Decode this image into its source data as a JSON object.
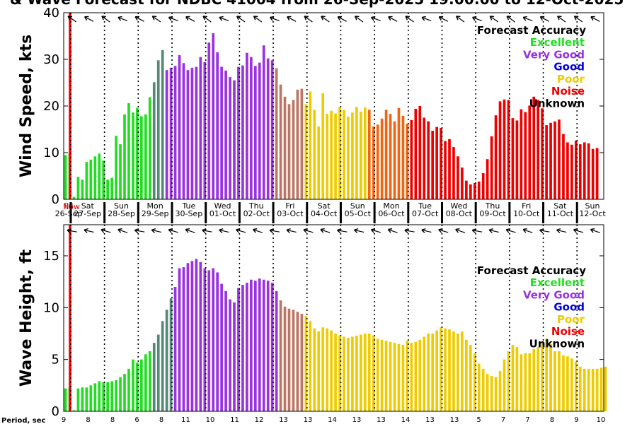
{
  "title": "& Wave Forecast for NDBC 41004 from 26-Sep-2025 19:00:00 to 12-Oct-2025",
  "colors": {
    "Excellent": "#22dd22",
    "VeryGood": "#9933dd",
    "Good": "#0000dd",
    "Poor": "#eecc00",
    "Noise": "#ee0000",
    "Unknown": "#000000",
    "Transition1": "#558877",
    "Transition2": "#bb7766",
    "Orange": "#ee6611",
    "Now": "#ff0000"
  },
  "legend": {
    "heading": "Forecast Accuracy",
    "items": [
      {
        "label": "Excellent",
        "color": "#22dd22"
      },
      {
        "label": "Very Good",
        "color": "#9933dd"
      },
      {
        "label": "Good",
        "color": "#0000dd"
      },
      {
        "label": "Poor",
        "color": "#eecc00"
      },
      {
        "label": "Noise",
        "color": "#ee0000"
      },
      {
        "label": "Unknown",
        "color": "#000000"
      }
    ]
  },
  "now_label": "Now",
  "days": [
    {
      "dow": "Fri",
      "date": "26-Sep"
    },
    {
      "dow": "Sat",
      "date": "27-Sep"
    },
    {
      "dow": "Sun",
      "date": "28-Sep"
    },
    {
      "dow": "Mon",
      "date": "29-Sep"
    },
    {
      "dow": "Tue",
      "date": "30-Sep"
    },
    {
      "dow": "Wed",
      "date": "01-Oct"
    },
    {
      "dow": "Thu",
      "date": "02-Oct"
    },
    {
      "dow": "Fri",
      "date": "03-Oct"
    },
    {
      "dow": "Sat",
      "date": "04-Oct"
    },
    {
      "dow": "Sun",
      "date": "05-Oct"
    },
    {
      "dow": "Mon",
      "date": "06-Oct"
    },
    {
      "dow": "Tue",
      "date": "07-Oct"
    },
    {
      "dow": "Wed",
      "date": "08-Oct"
    },
    {
      "dow": "Thu",
      "date": "09-Oct"
    },
    {
      "dow": "Fri",
      "date": "10-Oct"
    },
    {
      "dow": "Sat",
      "date": "11-Oct"
    },
    {
      "dow": "Sun",
      "date": "12-Oct"
    }
  ],
  "period_label": "Period, sec",
  "periods": [
    "9",
    "8",
    "8",
    "6",
    "8",
    "11",
    "10",
    "11",
    "12",
    "13",
    "13",
    "14",
    "13",
    "13",
    "14",
    "13",
    "13",
    "5",
    "7",
    "7",
    "8",
    "9",
    "10"
  ],
  "chart_data": [
    {
      "type": "bar",
      "ylabel": "Wind Speed, kts",
      "ylim": [
        0,
        40
      ],
      "yticks": [
        "0",
        "10",
        "20",
        "30",
        "40"
      ],
      "series": [
        {
          "values": [
            9.5,
            9.8,
            0.5,
            4.8,
            4.2,
            8,
            8.5,
            9.2,
            9.8,
            8.3,
            4.2,
            4.6,
            13.6,
            11.8,
            18.2,
            20.6,
            18.6,
            19.6,
            17.8,
            18.2,
            21.9,
            25.1,
            29.8,
            32,
            27.7,
            28.2,
            28.6,
            30.9,
            29.2,
            27.7,
            28.2,
            28.4,
            30.5,
            29.4,
            33.6,
            35.6,
            31.5,
            28.4,
            27.6,
            26.2,
            25.5,
            28.4,
            28.7,
            31.4,
            30.5,
            28.6,
            29.3,
            33,
            30.2,
            29.8,
            28.1,
            24.6,
            22,
            20.4,
            21.3,
            23.5,
            23.7,
            20.4,
            23.1,
            19.2,
            15.6,
            22.7,
            18.3,
            19,
            18.4,
            19.8,
            19.2,
            17.7,
            18.6,
            19.8,
            18.8,
            19.7,
            19.2,
            15.6,
            16,
            17.3,
            19.2,
            18.3,
            16.7,
            19.6,
            17.9,
            16.2,
            17,
            19.4,
            20,
            17.5,
            16.7,
            14.7,
            15.5,
            15.3,
            12.5,
            12.9,
            11.2,
            9.2,
            6.8,
            4,
            3.2,
            3.5,
            3.8,
            5.6,
            8.6,
            13.5,
            18,
            21,
            21.4,
            21.3,
            17.4,
            16.9,
            19.3,
            18.7,
            20.1,
            22,
            21.3,
            19.5,
            15.9,
            16.4,
            16.7,
            17.1,
            14,
            12.2,
            11.7,
            12.6,
            11.8,
            12.2,
            12,
            10.8,
            11
          ]
        }
      ]
    },
    {
      "type": "bar",
      "ylabel": "Wave Height, ft",
      "ylim": [
        0,
        18
      ],
      "yticks": [
        "0",
        "5",
        "10",
        "15"
      ],
      "series": [
        {
          "values": [
            2.2,
            2.3,
            0.1,
            2.2,
            2.3,
            2.3,
            2.5,
            2.7,
            2.9,
            2.8,
            2.8,
            2.9,
            3,
            3.3,
            3.6,
            4.1,
            5,
            4.7,
            5,
            5.5,
            5.8,
            6.6,
            7.4,
            8.7,
            9.8,
            10.9,
            12,
            13.8,
            13.9,
            14.3,
            14.5,
            14.7,
            14.4,
            13.8,
            13.6,
            13.8,
            13.4,
            12.3,
            11.6,
            10.8,
            10.5,
            11.9,
            12.2,
            12.4,
            12.7,
            12.6,
            12.8,
            12.7,
            12.6,
            12.4,
            11.6,
            10.7,
            10.1,
            9.9,
            9.8,
            9.6,
            9.4,
            9.2,
            8.7,
            8,
            7.7,
            8.1,
            8,
            7.8,
            7.5,
            7.3,
            7.2,
            7.1,
            7.2,
            7.3,
            7.4,
            7.5,
            7.5,
            7.3,
            7,
            6.9,
            6.8,
            6.7,
            6.6,
            6.5,
            6.4,
            6.8,
            6.6,
            6.7,
            6.9,
            7.2,
            7.5,
            7.5,
            7.8,
            8.1,
            8,
            7.9,
            7.7,
            7.5,
            7.7,
            6.9,
            6.4,
            5.6,
            4.6,
            4.1,
            3.6,
            3.4,
            3.3,
            3.9,
            5,
            5.8,
            6.4,
            6.2,
            5.5,
            5.6,
            5.6,
            6,
            6.2,
            6.6,
            7,
            6.5,
            5.8,
            5.8,
            5.4,
            5.3,
            5.1,
            4.8,
            4.3,
            4.1,
            4.1,
            4.1,
            4.1,
            4.2,
            4.3
          ]
        }
      ]
    }
  ]
}
